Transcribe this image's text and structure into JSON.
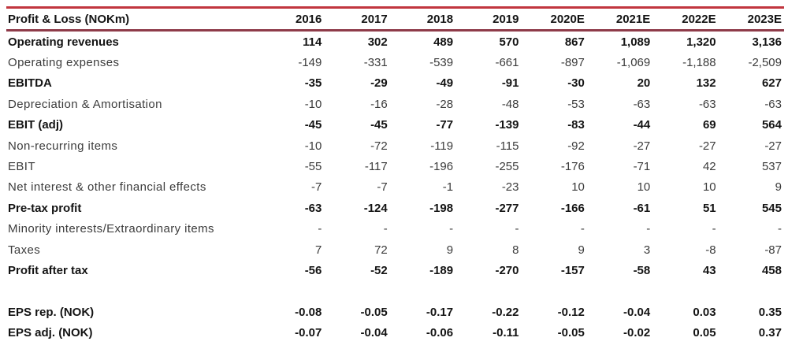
{
  "table": {
    "title": "Profit & Loss (NOKm)",
    "columns": [
      "2016",
      "2017",
      "2018",
      "2019",
      "2020E",
      "2021E",
      "2022E",
      "2023E"
    ],
    "rows": [
      {
        "label": "Operating revenues",
        "bold": true,
        "values": [
          "114",
          "302",
          "489",
          "570",
          "867",
          "1,089",
          "1,320",
          "3,136"
        ]
      },
      {
        "label": "Operating expenses",
        "bold": false,
        "values": [
          "-149",
          "-331",
          "-539",
          "-661",
          "-897",
          "-1,069",
          "-1,188",
          "-2,509"
        ]
      },
      {
        "label": "EBITDA",
        "bold": true,
        "values": [
          "-35",
          "-29",
          "-49",
          "-91",
          "-30",
          "20",
          "132",
          "627"
        ]
      },
      {
        "label": "Depreciation & Amortisation",
        "bold": false,
        "values": [
          "-10",
          "-16",
          "-28",
          "-48",
          "-53",
          "-63",
          "-63",
          "-63"
        ]
      },
      {
        "label": "EBIT (adj)",
        "bold": true,
        "values": [
          "-45",
          "-45",
          "-77",
          "-139",
          "-83",
          "-44",
          "69",
          "564"
        ]
      },
      {
        "label": "Non-recurring items",
        "bold": false,
        "values": [
          "-10",
          "-72",
          "-119",
          "-115",
          "-92",
          "-27",
          "-27",
          "-27"
        ]
      },
      {
        "label": "EBIT",
        "bold": false,
        "values": [
          "-55",
          "-117",
          "-196",
          "-255",
          "-176",
          "-71",
          "42",
          "537"
        ]
      },
      {
        "label": "Net interest & other financial effects",
        "bold": false,
        "values": [
          "-7",
          "-7",
          "-1",
          "-23",
          "10",
          "10",
          "10",
          "9"
        ]
      },
      {
        "label": "Pre-tax profit",
        "bold": true,
        "values": [
          "-63",
          "-124",
          "-198",
          "-277",
          "-166",
          "-61",
          "51",
          "545"
        ]
      },
      {
        "label": "Minority interests/Extraordinary items",
        "bold": false,
        "values": [
          "-",
          "-",
          "-",
          "-",
          "-",
          "-",
          "-",
          "-"
        ]
      },
      {
        "label": "Taxes",
        "bold": false,
        "values": [
          "7",
          "72",
          "9",
          "8",
          "9",
          "3",
          "-8",
          "-87"
        ]
      },
      {
        "label": "Profit after tax",
        "bold": true,
        "values": [
          "-56",
          "-52",
          "-189",
          "-270",
          "-157",
          "-58",
          "43",
          "458"
        ]
      },
      {
        "label": "",
        "spacer": true,
        "bold": false,
        "values": []
      },
      {
        "label": "EPS rep. (NOK)",
        "bold": true,
        "values": [
          "-0.08",
          "-0.05",
          "-0.17",
          "-0.22",
          "-0.12",
          "-0.04",
          "0.03",
          "0.35"
        ]
      },
      {
        "label": "EPS adj. (NOK)",
        "bold": true,
        "values": [
          "-0.07",
          "-0.04",
          "-0.06",
          "-0.11",
          "-0.05",
          "-0.02",
          "0.05",
          "0.37"
        ]
      }
    ],
    "colors": {
      "top_rule": "#c1353e",
      "header_rule": "#8e3b49",
      "bold_text": "#141414",
      "regular_text": "#3c3c3c"
    }
  }
}
